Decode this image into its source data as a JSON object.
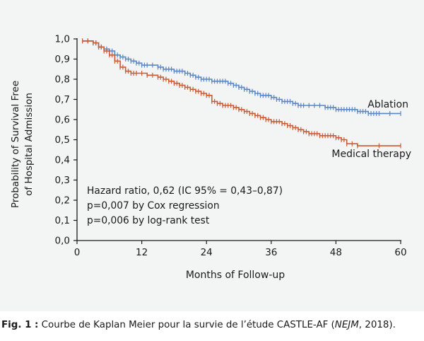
{
  "chart_data": {
    "type": "line",
    "subtype": "kaplan-meier step curve",
    "ylabel": [
      "Probability of Survival Free",
      "of Hospital Admission"
    ],
    "xlabel": "Months of Follow-up",
    "x_ticks": [
      "0",
      "12",
      "24",
      "36",
      "48",
      "60"
    ],
    "y_ticks": [
      "0,0",
      "0,1",
      "0,2",
      "0,3",
      "0,4",
      "0,5",
      "0,6",
      "0,7",
      "0,8",
      "0,9",
      "1,0"
    ],
    "xlim": [
      0,
      60
    ],
    "ylim": [
      0,
      1
    ],
    "series": [
      {
        "name": "Ablation",
        "color": "#5b86c5",
        "x": [
          1,
          3,
          4,
          5,
          6,
          7,
          8,
          9,
          10,
          11,
          12,
          13,
          15,
          16,
          17,
          18,
          19,
          20,
          21,
          22,
          23,
          24,
          25,
          26,
          27,
          28,
          29,
          30,
          31,
          32,
          33,
          34,
          35,
          36,
          37,
          38,
          39,
          40,
          41,
          42,
          44,
          46,
          47,
          48,
          49,
          50,
          51,
          52,
          53,
          54,
          55,
          56,
          60
        ],
        "y": [
          0.99,
          0.98,
          0.96,
          0.95,
          0.94,
          0.92,
          0.91,
          0.9,
          0.89,
          0.88,
          0.87,
          0.87,
          0.86,
          0.85,
          0.85,
          0.84,
          0.84,
          0.83,
          0.82,
          0.81,
          0.8,
          0.8,
          0.79,
          0.79,
          0.79,
          0.78,
          0.77,
          0.76,
          0.75,
          0.74,
          0.73,
          0.72,
          0.72,
          0.71,
          0.7,
          0.69,
          0.69,
          0.68,
          0.67,
          0.67,
          0.67,
          0.66,
          0.66,
          0.65,
          0.65,
          0.65,
          0.65,
          0.64,
          0.64,
          0.63,
          0.63,
          0.63,
          0.63
        ]
      },
      {
        "name": "Medical therapy",
        "color": "#cd5a33",
        "x": [
          1,
          3,
          4,
          5,
          6,
          7,
          8,
          9,
          10,
          11,
          13,
          15,
          16,
          17,
          18,
          19,
          20,
          21,
          22,
          23,
          24,
          25,
          26,
          27,
          28,
          29,
          30,
          31,
          32,
          33,
          34,
          35,
          36,
          37,
          38,
          39,
          40,
          41,
          42,
          43,
          44,
          45,
          46,
          47,
          48,
          49,
          50,
          52,
          60
        ],
        "y": [
          0.99,
          0.98,
          0.96,
          0.94,
          0.92,
          0.89,
          0.86,
          0.84,
          0.83,
          0.83,
          0.82,
          0.81,
          0.8,
          0.79,
          0.78,
          0.77,
          0.76,
          0.75,
          0.74,
          0.73,
          0.72,
          0.69,
          0.68,
          0.67,
          0.67,
          0.66,
          0.65,
          0.64,
          0.63,
          0.62,
          0.61,
          0.6,
          0.59,
          0.59,
          0.58,
          0.57,
          0.56,
          0.55,
          0.54,
          0.53,
          0.53,
          0.52,
          0.52,
          0.52,
          0.51,
          0.5,
          0.48,
          0.47,
          0.47
        ]
      }
    ],
    "annotations": [
      "Hazard ratio, 0,62 (IC 95% = 0,43–0,87)",
      "p=0,007 by Cox regression",
      "p=0,006 by log-rank test"
    ],
    "grid": false
  },
  "caption": {
    "label": "Fig. 1 :",
    "text_before": " Courbe de Kaplan Meier pour la survie de l’étude CASTLE-AF (",
    "journal": "NEJM",
    "text_after": ", 2018)."
  }
}
